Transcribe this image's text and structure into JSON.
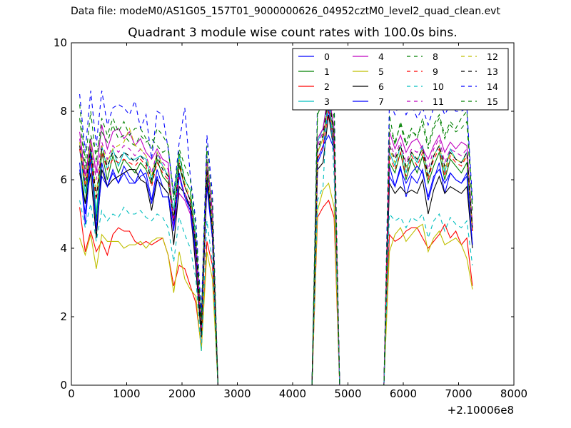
{
  "chart_data": {
    "type": "line",
    "suptitle": "Data file: modeM0/AS1G05_157T01_9000000626_04952cztM0_level2_quad_clean.evt",
    "title": "Quadrant 3 module wise count rates with 100.0s bins.",
    "xlabel": "",
    "ylabel": "",
    "x_offset_label": "+2.10006e8",
    "xlim": [
      0,
      8000
    ],
    "ylim": [
      0,
      10
    ],
    "xticks": [
      "0",
      "1000",
      "2000",
      "3000",
      "4000",
      "5000",
      "6000",
      "7000",
      "8000"
    ],
    "yticks": [
      "0",
      "2",
      "4",
      "6",
      "8",
      "10"
    ],
    "legend_location": "top-right",
    "x": [
      150,
      250,
      350,
      450,
      550,
      650,
      750,
      850,
      950,
      1050,
      1150,
      1250,
      1350,
      1450,
      1550,
      1650,
      1750,
      1850,
      1950,
      2050,
      2150,
      2250,
      2350,
      2450,
      2550,
      2650,
      4350,
      4450,
      4550,
      4650,
      4750,
      4850,
      5650,
      5750,
      5850,
      5950,
      6050,
      6150,
      6250,
      6350,
      6450,
      6550,
      6650,
      6750,
      6850,
      6950,
      7050,
      7150,
      7250
    ],
    "series": [
      {
        "name": "0",
        "color": "#0000ff",
        "dash": "solid",
        "values": [
          6.3,
          5.0,
          6.8,
          4.5,
          6.5,
          5.8,
          6.3,
          5.9,
          6.4,
          6.1,
          5.9,
          6.1,
          6.2,
          5.4,
          6.3,
          5.8,
          5.6,
          4.7,
          6.2,
          5.5,
          5.2,
          3.9,
          1.8,
          6.0,
          4.3,
          0.0,
          0.0,
          6.5,
          6.9,
          8.1,
          7.0,
          0.0,
          0.0,
          6.1,
          5.8,
          6.4,
          5.5,
          6.1,
          5.9,
          6.3,
          5.4,
          6.0,
          6.5,
          5.6,
          6.2,
          6.0,
          5.9,
          6.1,
          4.1
        ]
      },
      {
        "name": "1",
        "color": "#008000",
        "dash": "solid",
        "values": [
          6.5,
          5.3,
          7.0,
          4.8,
          6.8,
          6.0,
          6.7,
          6.2,
          6.6,
          6.4,
          6.2,
          6.5,
          6.3,
          5.9,
          6.6,
          6.1,
          5.9,
          4.9,
          6.4,
          5.8,
          5.4,
          4.0,
          1.7,
          6.2,
          4.5,
          0.0,
          0.0,
          6.8,
          7.2,
          8.3,
          7.2,
          0.0,
          0.0,
          6.5,
          6.2,
          6.8,
          6.0,
          6.6,
          6.2,
          6.7,
          5.9,
          6.4,
          6.8,
          6.0,
          6.6,
          6.4,
          6.2,
          6.5,
          4.5
        ]
      },
      {
        "name": "2",
        "color": "#ff0000",
        "dash": "solid",
        "values": [
          5.2,
          3.9,
          4.5,
          3.9,
          4.2,
          3.8,
          4.4,
          4.6,
          4.5,
          4.5,
          4.2,
          4.1,
          4.2,
          4.1,
          4.2,
          4.3,
          3.8,
          2.9,
          3.5,
          3.4,
          2.9,
          2.4,
          1.1,
          4.2,
          3.5,
          0.0,
          0.0,
          4.9,
          5.2,
          5.4,
          4.9,
          0.0,
          0.0,
          4.4,
          4.2,
          4.3,
          4.5,
          4.6,
          4.6,
          4.3,
          4.0,
          4.2,
          4.4,
          4.7,
          4.3,
          4.5,
          4.1,
          4.3,
          2.9
        ]
      },
      {
        "name": "3",
        "color": "#00bfbf",
        "dash": "solid",
        "values": [
          6.9,
          5.6,
          7.1,
          5.0,
          7.0,
          6.3,
          6.9,
          6.4,
          6.8,
          6.6,
          6.6,
          6.7,
          6.6,
          6.0,
          6.8,
          6.4,
          6.1,
          5.1,
          6.7,
          6.0,
          5.7,
          4.3,
          1.8,
          6.4,
          4.7,
          0.0,
          0.0,
          7.1,
          7.5,
          8.6,
          7.4,
          0.0,
          0.0,
          6.8,
          6.4,
          7.0,
          6.2,
          6.8,
          6.5,
          7.0,
          6.1,
          6.7,
          7.0,
          6.2,
          6.9,
          6.6,
          6.5,
          6.8,
          4.7
        ]
      },
      {
        "name": "4",
        "color": "#bf00bf",
        "dash": "solid",
        "values": [
          7.4,
          6.1,
          7.2,
          6.2,
          7.6,
          6.9,
          7.4,
          7.5,
          7.2,
          7.4,
          7.0,
          7.2,
          6.8,
          6.6,
          6.9,
          6.6,
          6.5,
          4.6,
          5.6,
          5.4,
          5.0,
          3.7,
          1.5,
          6.6,
          5.1,
          0.0,
          0.0,
          7.2,
          7.5,
          8.5,
          7.5,
          0.0,
          0.0,
          7.4,
          6.9,
          7.3,
          6.8,
          7.1,
          7.2,
          6.9,
          6.6,
          7.0,
          7.3,
          6.8,
          7.1,
          6.9,
          7.1,
          7.0,
          4.6
        ]
      },
      {
        "name": "5",
        "color": "#bfbf00",
        "dash": "solid",
        "values": [
          4.3,
          3.8,
          4.4,
          3.4,
          4.4,
          4.2,
          4.2,
          4.2,
          4.0,
          4.1,
          4.1,
          4.2,
          4.0,
          4.2,
          4.3,
          4.3,
          3.8,
          2.7,
          3.9,
          3.1,
          2.8,
          2.6,
          1.0,
          3.9,
          3.1,
          0.0,
          0.0,
          5.1,
          5.7,
          5.9,
          5.2,
          0.0,
          0.0,
          3.9,
          4.4,
          4.6,
          4.2,
          4.4,
          4.6,
          4.7,
          3.9,
          4.3,
          4.5,
          4.1,
          4.2,
          4.3,
          4.1,
          3.7,
          2.8
        ]
      },
      {
        "name": "6",
        "color": "#000000",
        "dash": "solid",
        "values": [
          6.2,
          5.3,
          6.2,
          4.3,
          6.3,
          5.8,
          6.0,
          6.1,
          6.2,
          6.3,
          6.3,
          6.0,
          5.9,
          5.1,
          6.0,
          5.8,
          5.6,
          4.1,
          5.8,
          5.6,
          5.2,
          3.4,
          1.4,
          5.9,
          4.3,
          0.0,
          0.0,
          6.3,
          6.5,
          7.9,
          6.8,
          0.0,
          0.0,
          5.9,
          5.6,
          5.8,
          5.6,
          5.7,
          5.6,
          6.0,
          5.0,
          5.7,
          6.1,
          5.6,
          5.8,
          5.7,
          5.6,
          5.8,
          4.0
        ]
      },
      {
        "name": "7",
        "color": "#0000ff",
        "dash": "solid",
        "values": [
          6.5,
          4.7,
          6.6,
          4.6,
          6.1,
          5.8,
          6.2,
          5.9,
          6.2,
          5.9,
          5.9,
          6.3,
          6.0,
          5.3,
          6.1,
          5.5,
          5.5,
          4.5,
          6.1,
          5.5,
          5.1,
          3.8,
          1.9,
          5.8,
          4.3,
          0.0,
          0.0,
          6.6,
          7.0,
          7.3,
          6.9,
          0.0,
          0.0,
          6.4,
          5.8,
          6.3,
          5.9,
          6.2,
          6.4,
          6.2,
          5.5,
          6.1,
          6.3,
          5.9,
          6.2,
          6.0,
          5.9,
          6.2,
          4.1
        ]
      },
      {
        "name": "8",
        "color": "#008000",
        "dash": "dashed",
        "values": [
          7.8,
          6.3,
          7.3,
          6.8,
          7.4,
          7.1,
          7.6,
          7.2,
          7.3,
          7.1,
          7.0,
          7.3,
          7.1,
          7.2,
          7.0,
          6.8,
          6.9,
          5.5,
          6.8,
          6.0,
          5.7,
          4.2,
          1.7,
          6.7,
          4.9,
          0.0,
          0.0,
          7.9,
          8.3,
          8.8,
          7.8,
          0.0,
          0.0,
          7.9,
          7.0,
          7.7,
          7.1,
          7.5,
          7.2,
          7.8,
          7.0,
          7.6,
          7.9,
          7.3,
          7.7,
          7.5,
          7.8,
          8.0,
          5.2
        ]
      },
      {
        "name": "9",
        "color": "#ff0000",
        "dash": "dashed",
        "values": [
          6.9,
          5.8,
          6.6,
          5.4,
          6.8,
          6.3,
          6.6,
          6.5,
          6.6,
          6.5,
          6.4,
          6.6,
          6.4,
          5.8,
          6.5,
          6.2,
          6.0,
          4.8,
          6.5,
          5.8,
          5.4,
          4.1,
          1.6,
          6.3,
          4.6,
          0.0,
          0.0,
          6.6,
          7.0,
          8.0,
          7.1,
          0.0,
          0.0,
          6.7,
          6.3,
          6.8,
          6.1,
          6.7,
          6.4,
          6.8,
          6.0,
          6.6,
          6.9,
          6.1,
          6.7,
          6.5,
          6.4,
          6.7,
          4.5
        ]
      },
      {
        "name": "10",
        "color": "#00bfbf",
        "dash": "dashed",
        "values": [
          5.4,
          4.6,
          5.3,
          4.2,
          5.1,
          4.8,
          5.0,
          4.9,
          5.2,
          5.0,
          5.0,
          5.1,
          4.9,
          4.8,
          5.0,
          4.9,
          4.6,
          3.6,
          4.9,
          4.4,
          4.0,
          3.1,
          1.0,
          4.8,
          3.6,
          0.0,
          0.0,
          5.4,
          5.8,
          9.0,
          6.1,
          0.0,
          0.0,
          5.0,
          4.8,
          4.9,
          4.6,
          4.9,
          4.8,
          5.0,
          4.3,
          4.8,
          5.0,
          4.5,
          4.9,
          4.7,
          4.6,
          4.8,
          3.5
        ]
      },
      {
        "name": "11",
        "color": "#bf00bf",
        "dash": "dashed",
        "values": [
          7.2,
          6.0,
          7.0,
          6.0,
          7.1,
          6.6,
          7.0,
          6.8,
          7.0,
          6.9,
          6.7,
          6.9,
          6.7,
          6.2,
          6.8,
          6.5,
          6.3,
          4.9,
          6.1,
          5.6,
          5.3,
          4.2,
          1.6,
          6.5,
          4.9,
          0.0,
          0.0,
          7.0,
          7.4,
          8.7,
          7.4,
          0.0,
          0.0,
          7.1,
          6.7,
          7.1,
          6.5,
          6.9,
          6.8,
          7.0,
          6.3,
          6.9,
          7.2,
          6.5,
          6.9,
          6.8,
          6.7,
          6.9,
          4.7
        ]
      },
      {
        "name": "12",
        "color": "#bfbf00",
        "dash": "dashed",
        "values": [
          7.1,
          5.9,
          7.1,
          5.6,
          7.0,
          6.5,
          6.9,
          7.0,
          7.1,
          7.5,
          7.0,
          6.9,
          6.7,
          6.1,
          6.8,
          6.4,
          6.2,
          4.8,
          6.6,
          5.9,
          5.5,
          4.1,
          1.6,
          6.4,
          4.7,
          0.0,
          0.0,
          6.8,
          7.2,
          8.4,
          7.2,
          0.0,
          0.0,
          6.9,
          6.5,
          7.0,
          6.3,
          6.8,
          6.6,
          6.9,
          6.1,
          6.7,
          7.0,
          6.3,
          6.8,
          6.6,
          6.5,
          6.7,
          4.6
        ]
      },
      {
        "name": "13",
        "color": "#000000",
        "dash": "dashed",
        "values": [
          7.0,
          5.8,
          6.9,
          5.5,
          6.9,
          6.4,
          6.8,
          6.6,
          6.8,
          6.7,
          6.5,
          6.7,
          6.5,
          6.0,
          6.7,
          6.3,
          6.1,
          4.8,
          6.5,
          5.8,
          5.4,
          4.1,
          1.6,
          6.3,
          4.6,
          0.0,
          0.0,
          6.9,
          7.3,
          8.5,
          7.3,
          0.0,
          0.0,
          7.0,
          6.6,
          7.0,
          6.4,
          6.8,
          6.6,
          6.9,
          6.1,
          6.7,
          7.0,
          6.4,
          6.8,
          6.6,
          6.5,
          6.8,
          4.6
        ]
      },
      {
        "name": "14",
        "color": "#0000ff",
        "dash": "dashed",
        "values": [
          8.5,
          6.8,
          8.6,
          7.0,
          8.6,
          7.6,
          8.1,
          8.2,
          8.1,
          7.9,
          8.3,
          7.5,
          7.9,
          6.6,
          8.0,
          7.9,
          6.9,
          5.6,
          7.1,
          8.1,
          6.1,
          4.8,
          2.1,
          7.3,
          5.6,
          0.0,
          0.0,
          8.4,
          8.8,
          9.1,
          8.4,
          0.0,
          0.0,
          8.3,
          7.9,
          8.3,
          7.9,
          8.2,
          7.8,
          8.1,
          7.6,
          8.1,
          8.3,
          7.9,
          8.2,
          8.0,
          8.0,
          8.1,
          5.4
        ]
      },
      {
        "name": "15",
        "color": "#008000",
        "dash": "dashed",
        "values": [
          8.2,
          6.5,
          8.0,
          6.5,
          7.8,
          7.3,
          7.8,
          7.4,
          7.7,
          7.3,
          7.5,
          7.5,
          7.2,
          6.9,
          7.5,
          7.3,
          7.0,
          5.4,
          6.9,
          6.4,
          6.0,
          4.6,
          1.9,
          7.0,
          5.3,
          0.0,
          0.0,
          8.1,
          8.6,
          9.0,
          8.1,
          0.0,
          0.0,
          7.5,
          7.1,
          7.6,
          7.0,
          7.4,
          7.3,
          7.6,
          6.9,
          7.5,
          7.8,
          7.2,
          7.6,
          7.4,
          7.5,
          7.7,
          5.1
        ]
      }
    ]
  }
}
